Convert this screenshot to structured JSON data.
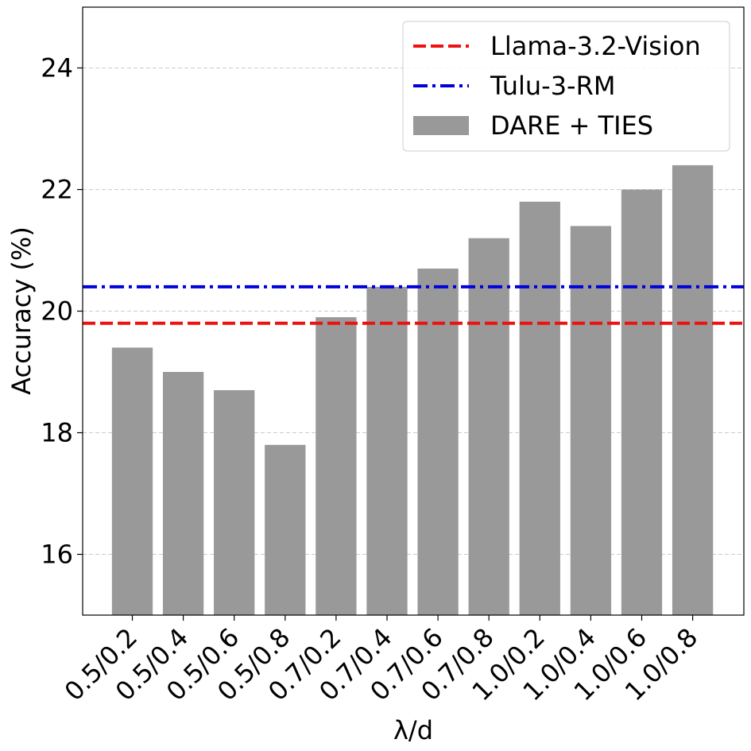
{
  "chart_data": {
    "type": "bar",
    "title": "",
    "xlabel": "λ/d",
    "ylabel": "Accuracy (%)",
    "ylim": [
      15,
      25
    ],
    "yticks": [
      16,
      18,
      20,
      22,
      24
    ],
    "grid": "y-dashed",
    "categories": [
      "0.5/0.2",
      "0.5/0.4",
      "0.5/0.6",
      "0.5/0.8",
      "0.7/0.2",
      "0.7/0.4",
      "0.7/0.6",
      "0.7/0.8",
      "1.0/0.2",
      "1.0/0.4",
      "1.0/0.6",
      "1.0/0.8"
    ],
    "series": [
      {
        "name": "DARE + TIES",
        "values": [
          19.4,
          19.0,
          18.7,
          17.8,
          19.9,
          20.4,
          20.7,
          21.2,
          21.8,
          21.4,
          22.0,
          22.4
        ],
        "color": "#999999"
      }
    ],
    "reference_lines": [
      {
        "name": "Llama-3.2-Vision",
        "value": 19.8,
        "color": "#ee1111",
        "style": "dashed"
      },
      {
        "name": "Tulu-3-RM",
        "value": 20.4,
        "color": "#0000dd",
        "style": "dashdot"
      }
    ],
    "legend": {
      "position": "top-right",
      "entries": [
        "Llama-3.2-Vision",
        "Tulu-3-RM",
        "DARE + TIES"
      ]
    }
  }
}
